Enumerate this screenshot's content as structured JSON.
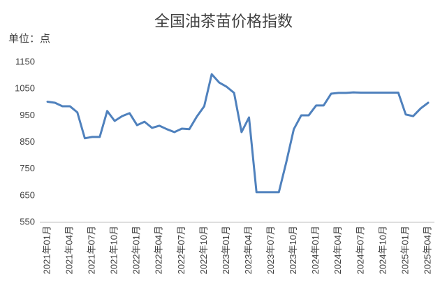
{
  "chart_data": {
    "type": "line",
    "title": "全国油茶苗价格指数",
    "unit_label": "单位：点",
    "categories": [
      "2021年01月",
      null,
      null,
      "2021年04月",
      null,
      null,
      "2021年07月",
      null,
      null,
      "2021年10月",
      null,
      null,
      "2022年01月",
      null,
      null,
      "2022年04月",
      null,
      null,
      "2022年07月",
      null,
      null,
      "2022年10月",
      null,
      null,
      "2023年01月",
      null,
      null,
      "2023年04月",
      null,
      null,
      "2023年07月",
      null,
      null,
      "2023年10月",
      null,
      null,
      "2024年01月",
      null,
      null,
      "2024年04月",
      null,
      null,
      "2024年07月",
      null,
      null,
      "2024年10月",
      null,
      null,
      "2025年01月",
      null,
      null,
      "2025年04月"
    ],
    "values": [
      1002,
      998,
      985,
      985,
      962,
      865,
      870,
      870,
      967,
      930,
      948,
      959,
      914,
      927,
      904,
      912,
      899,
      888,
      901,
      899,
      946,
      985,
      1105,
      1074,
      1058,
      1035,
      888,
      943,
      663,
      663,
      663,
      663,
      776,
      899,
      951,
      951,
      988,
      988,
      1032,
      1035,
      1035,
      1037,
      1036,
      1036,
      1036,
      1036,
      1036,
      1036,
      954,
      948,
      977,
      998
    ],
    "color": "#4f81bd",
    "ylim": [
      550,
      1150
    ],
    "yticks": [
      550,
      650,
      750,
      850,
      950,
      1050,
      1150
    ],
    "grid": false
  }
}
